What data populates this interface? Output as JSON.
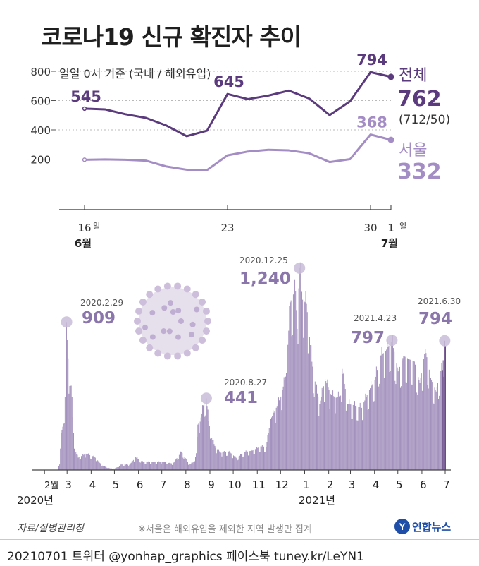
{
  "title": "코로나19 신규 확진자 추이",
  "subtitle": "일일 0시 기준 (국내 / 해외유입)",
  "colors": {
    "total": "#5b3a7e",
    "seoul": "#a48cc4",
    "bars": "#9b87b8",
    "bars_recent": "#5b3a7e",
    "callout": "#c8bcd8"
  },
  "chart_data": [
    {
      "type": "line",
      "x": [
        "6/16",
        "6/17",
        "6/18",
        "6/19",
        "6/20",
        "6/21",
        "6/22",
        "6/23",
        "6/24",
        "6/25",
        "6/26",
        "6/27",
        "6/28",
        "6/29",
        "6/30",
        "7/1"
      ],
      "x_tick_labels": [
        {
          "label": "16",
          "suffix": "일",
          "month": "6월"
        },
        {
          "label": "23"
        },
        {
          "label": "30"
        },
        {
          "label": "1",
          "suffix": "일",
          "month": "7월"
        }
      ],
      "series": [
        {
          "name": "전체",
          "values": [
            545,
            540,
            507,
            482,
            430,
            357,
            395,
            645,
            610,
            634,
            668,
            614,
            501,
            595,
            794,
            762
          ]
        },
        {
          "name": "서울",
          "values": [
            196,
            198,
            196,
            190,
            150,
            128,
            126,
            226,
            252,
            264,
            260,
            240,
            180,
            200,
            368,
            332
          ]
        }
      ],
      "ylim": [
        100,
        800
      ],
      "y_ticks": [
        200,
        400,
        600,
        800
      ],
      "labels": [
        {
          "series": "전체",
          "x": "6/16",
          "text": "545"
        },
        {
          "series": "전체",
          "x": "6/23",
          "text": "645"
        },
        {
          "series": "전체",
          "x": "6/30",
          "text": "794"
        },
        {
          "series": "서울",
          "x": "6/30",
          "text": "368"
        }
      ],
      "legend": {
        "total_name": "전체",
        "total_value": "762",
        "total_breakdown": "(712/50)",
        "seoul_name": "서울",
        "seoul_value": "332"
      }
    },
    {
      "type": "bar",
      "x_range": [
        "2020-01-20",
        "2021-07-01"
      ],
      "month_ticks": [
        "2월",
        "3",
        "4",
        "5",
        "6",
        "7",
        "8",
        "9",
        "10",
        "11",
        "12",
        "1",
        "2",
        "3",
        "4",
        "5",
        "6",
        "7"
      ],
      "year_labels": [
        "2020년",
        "2021년"
      ],
      "ylim": [
        0,
        1300
      ],
      "annotations": [
        {
          "date": "2020.2.29",
          "value": "909"
        },
        {
          "date": "2020.8.27",
          "value": "441"
        },
        {
          "date": "2020.12.25",
          "value": "1,240"
        },
        {
          "date": "2021.4.23",
          "value": "797"
        },
        {
          "date": "2021.6.30",
          "value": "794"
        }
      ],
      "anchors": [
        [
          "2020-01-20",
          1
        ],
        [
          "2020-02-17",
          1
        ],
        [
          "2020-02-20",
          34
        ],
        [
          "2020-02-22",
          229
        ],
        [
          "2020-02-25",
          284
        ],
        [
          "2020-02-27",
          449
        ],
        [
          "2020-02-29",
          909
        ],
        [
          "2020-03-02",
          686
        ],
        [
          "2020-03-04",
          516
        ],
        [
          "2020-03-06",
          518
        ],
        [
          "2020-03-10",
          131
        ],
        [
          "2020-03-15",
          76
        ],
        [
          "2020-03-25",
          100
        ],
        [
          "2020-04-05",
          81
        ],
        [
          "2020-04-15",
          27
        ],
        [
          "2020-04-25",
          10
        ],
        [
          "2020-05-01",
          9
        ],
        [
          "2020-05-10",
          34
        ],
        [
          "2020-05-20",
          32
        ],
        [
          "2020-05-28",
          79
        ],
        [
          "2020-06-05",
          51
        ],
        [
          "2020-06-20",
          48
        ],
        [
          "2020-07-01",
          51
        ],
        [
          "2020-07-15",
          39
        ],
        [
          "2020-07-26",
          113
        ],
        [
          "2020-08-05",
          33
        ],
        [
          "2020-08-12",
          54
        ],
        [
          "2020-08-14",
          103
        ],
        [
          "2020-08-16",
          279
        ],
        [
          "2020-08-19",
          297
        ],
        [
          "2020-08-23",
          397
        ],
        [
          "2020-08-27",
          441
        ],
        [
          "2020-08-30",
          299
        ],
        [
          "2020-09-03",
          195
        ],
        [
          "2020-09-08",
          136
        ],
        [
          "2020-09-15",
          106
        ],
        [
          "2020-09-25",
          114
        ],
        [
          "2020-10-05",
          73
        ],
        [
          "2020-10-15",
          110
        ],
        [
          "2020-10-25",
          119
        ],
        [
          "2020-11-05",
          145
        ],
        [
          "2020-11-12",
          143
        ],
        [
          "2020-11-18",
          313
        ],
        [
          "2020-11-25",
          382
        ],
        [
          "2020-12-01",
          451
        ],
        [
          "2020-12-08",
          594
        ],
        [
          "2020-12-13",
          1030
        ],
        [
          "2020-12-17",
          1078
        ],
        [
          "2020-12-20",
          1097
        ],
        [
          "2020-12-22",
          867
        ],
        [
          "2020-12-25",
          1240
        ],
        [
          "2020-12-29",
          1046
        ],
        [
          "2021-01-03",
          1020
        ],
        [
          "2021-01-06",
          869
        ],
        [
          "2021-01-10",
          665
        ],
        [
          "2021-01-15",
          513
        ],
        [
          "2021-01-20",
          404
        ],
        [
          "2021-01-27",
          559
        ],
        [
          "2021-02-03",
          467
        ],
        [
          "2021-02-10",
          444
        ],
        [
          "2021-02-16",
          457
        ],
        [
          "2021-02-18",
          621
        ],
        [
          "2021-02-25",
          406
        ],
        [
          "2021-03-05",
          398
        ],
        [
          "2021-03-15",
          382
        ],
        [
          "2021-03-25",
          494
        ],
        [
          "2021-04-01",
          551
        ],
        [
          "2021-04-08",
          700
        ],
        [
          "2021-04-15",
          731
        ],
        [
          "2021-04-23",
          797
        ],
        [
          "2021-05-01",
          606
        ],
        [
          "2021-05-08",
          701
        ],
        [
          "2021-05-15",
          681
        ],
        [
          "2021-05-22",
          666
        ],
        [
          "2021-05-29",
          533
        ],
        [
          "2021-06-05",
          744
        ],
        [
          "2021-06-12",
          565
        ],
        [
          "2021-06-19",
          482
        ],
        [
          "2021-06-24",
          610
        ],
        [
          "2021-06-27",
          614
        ],
        [
          "2021-06-30",
          794
        ],
        [
          "2021-07-01",
          762
        ]
      ]
    }
  ],
  "footer": {
    "source": "자료/질병관리청",
    "note": "※서울은 해외유입을 제외한 지역 발생만 집계",
    "credit": "20210701 트위터 @yonhap_graphics  페이스북 tuney.kr/LeYN1",
    "logo_text": "연합뉴스"
  }
}
